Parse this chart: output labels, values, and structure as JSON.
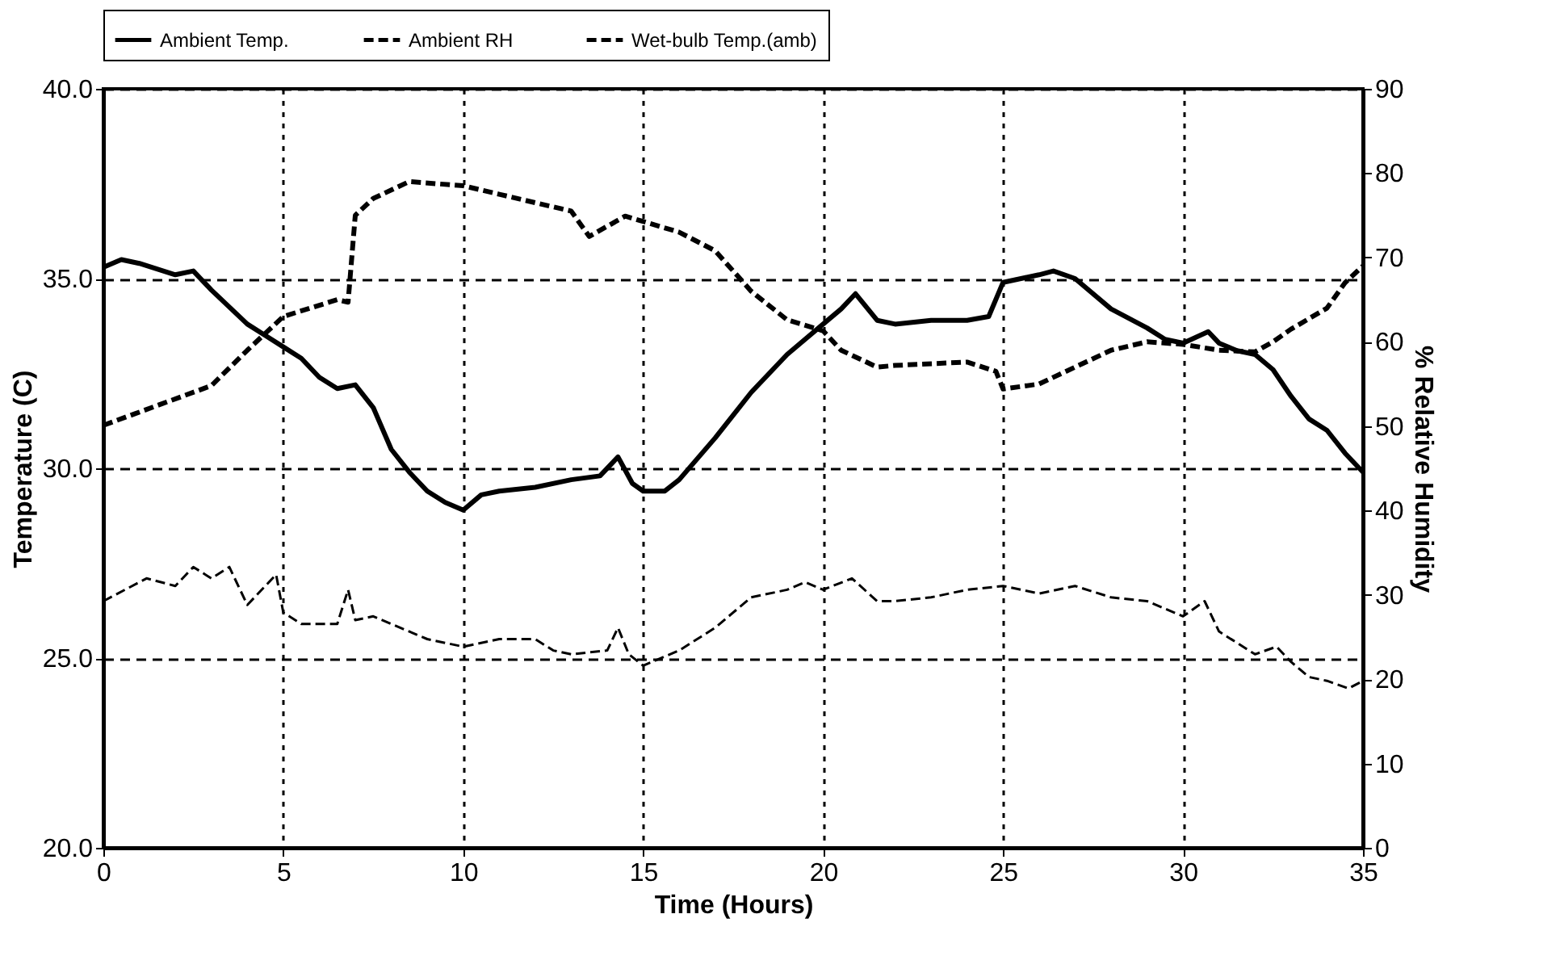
{
  "chart_data": {
    "type": "line",
    "xlabel": "Time (Hours)",
    "ylabel": "Temperature (C)",
    "y2label": "% Relative Humidity",
    "xlim": [
      0,
      35
    ],
    "xticks": [
      0,
      5,
      10,
      15,
      20,
      25,
      30,
      35
    ],
    "ylim": [
      20,
      40
    ],
    "yticks": [
      {
        "value": 20,
        "label": "20.0"
      },
      {
        "value": 25,
        "label": "25.0"
      },
      {
        "value": 30,
        "label": "30.0"
      },
      {
        "value": 35,
        "label": "35.0"
      },
      {
        "value": 40,
        "label": "40.0"
      }
    ],
    "y2lim": [
      0,
      90
    ],
    "y2ticks": [
      0,
      10,
      20,
      30,
      40,
      50,
      60,
      70,
      80,
      90
    ],
    "grid": true,
    "legend": "top",
    "series": [
      {
        "name": "Ambient Temp.",
        "color": "#000000",
        "line_style": "solid",
        "x": [
          0,
          0.5,
          1,
          2,
          2.5,
          3,
          4,
          4.5,
          5,
          5.5,
          6,
          6.5,
          7,
          7.5,
          8,
          8.5,
          9,
          9.5,
          10,
          10.5,
          11,
          12,
          13,
          13.8,
          14.3,
          14.7,
          15,
          15.6,
          16,
          17,
          18,
          19,
          20,
          20.5,
          20.9,
          21.5,
          22,
          23,
          24,
          24.6,
          25,
          26,
          26.4,
          27,
          28,
          29,
          29.5,
          30,
          30.7,
          31,
          31.5,
          32,
          32.5,
          33,
          33.5,
          34,
          34.5,
          35
        ],
        "values": [
          35.3,
          35.5,
          35.4,
          35.1,
          35.2,
          34.7,
          33.8,
          33.5,
          33.2,
          32.9,
          32.4,
          32.1,
          32.2,
          31.6,
          30.5,
          29.9,
          29.4,
          29.1,
          28.9,
          29.3,
          29.4,
          29.5,
          29.7,
          29.8,
          30.3,
          29.6,
          29.4,
          29.4,
          29.7,
          30.8,
          32.0,
          33.0,
          33.8,
          34.2,
          34.6,
          33.9,
          33.8,
          33.9,
          33.9,
          34.0,
          34.9,
          35.1,
          35.2,
          35.0,
          34.2,
          33.7,
          33.4,
          33.3,
          33.6,
          33.3,
          33.1,
          33.0,
          32.6,
          31.9,
          31.3,
          31.0,
          30.4,
          29.9
        ]
      },
      {
        "name": "Ambient RH",
        "color": "#000000",
        "line_style": "dashed",
        "axis": "y2",
        "x": [
          0,
          3,
          4,
          5,
          6.5,
          6.8,
          7,
          7.5,
          8.5,
          10,
          11,
          12,
          13,
          13.5,
          14.5,
          16,
          17,
          18,
          19,
          20,
          20.5,
          21.5,
          22,
          24,
          24.8,
          25,
          26,
          27,
          28,
          29,
          30,
          31,
          32,
          32.5,
          33,
          34,
          34.5,
          35
        ],
        "values": [
          50.1,
          54.8,
          59,
          63,
          65,
          64.7,
          75,
          77,
          79,
          78.5,
          77.5,
          76.5,
          75.5,
          72.5,
          74.9,
          73,
          70.8,
          66,
          62.6,
          61.3,
          59,
          57,
          57.2,
          57.6,
          56.5,
          54.4,
          55,
          57,
          59,
          60,
          59.7,
          59,
          58.8,
          60,
          61.5,
          64,
          67,
          69
        ]
      },
      {
        "name": "Wet-bulb Temp.(amb)",
        "color": "#000000",
        "line_style": "dashed",
        "x": [
          0,
          1.2,
          2,
          2.5,
          3,
          3.5,
          4,
          4.8,
          5,
          5.5,
          6.5,
          6.8,
          7,
          7.5,
          8,
          9,
          10,
          11,
          12,
          12.5,
          13,
          14,
          14.3,
          14.6,
          15,
          16,
          17,
          18,
          19,
          19.5,
          20,
          20.8,
          21.5,
          22,
          23,
          24,
          25,
          26,
          27,
          28,
          29,
          30,
          30.6,
          31,
          32,
          32.6,
          33,
          33.5,
          34,
          34.6,
          35
        ],
        "values": [
          26.5,
          27.1,
          26.9,
          27.4,
          27.1,
          27.4,
          26.4,
          27.2,
          26.2,
          25.9,
          25.9,
          26.8,
          26.0,
          26.1,
          25.9,
          25.5,
          25.3,
          25.5,
          25.5,
          25.2,
          25.1,
          25.2,
          25.8,
          25.1,
          24.8,
          25.2,
          25.8,
          26.6,
          26.8,
          27.0,
          26.8,
          27.1,
          26.5,
          26.5,
          26.6,
          26.8,
          26.9,
          26.7,
          26.9,
          26.6,
          26.5,
          26.1,
          26.5,
          25.7,
          25.1,
          25.3,
          24.9,
          24.5,
          24.4,
          24.2,
          24.4
        ]
      }
    ]
  }
}
